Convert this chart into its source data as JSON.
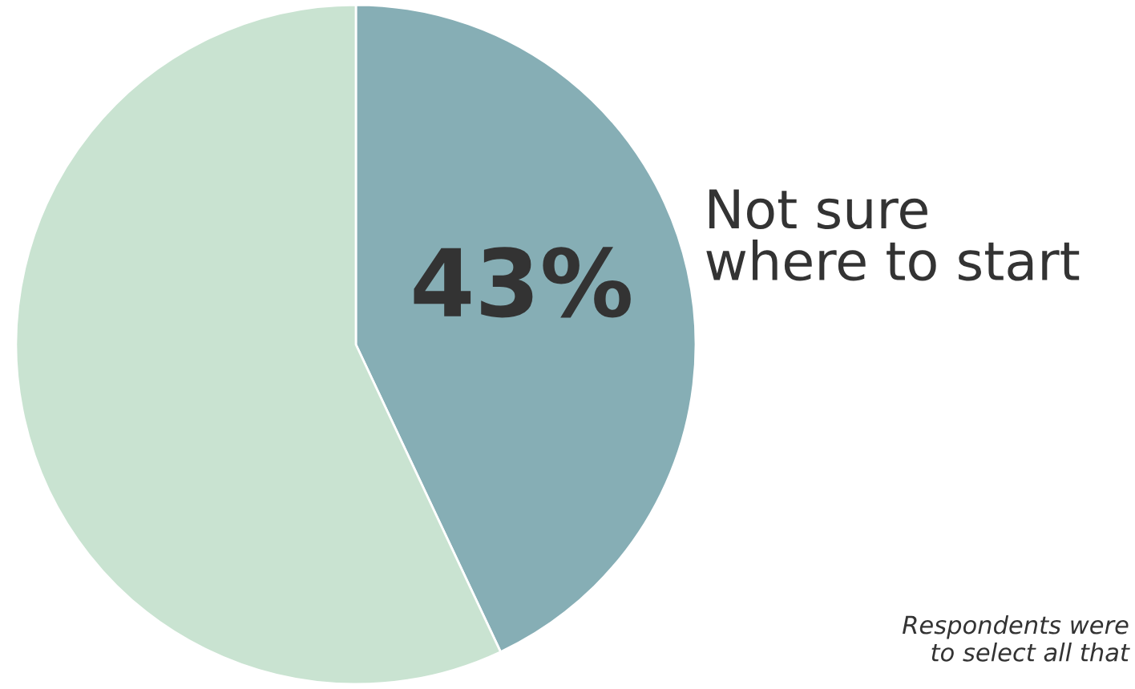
{
  "chart_data": {
    "type": "pie",
    "categories": [
      "Not sure\nwhere to start",
      null
    ],
    "values": [
      43,
      57
    ],
    "colors": [
      "#86aeb5",
      "#c9e3d1"
    ],
    "value_labels": [
      "43%",
      null
    ],
    "annotations": [
      "Respondents were\nto select all that"
    ]
  }
}
